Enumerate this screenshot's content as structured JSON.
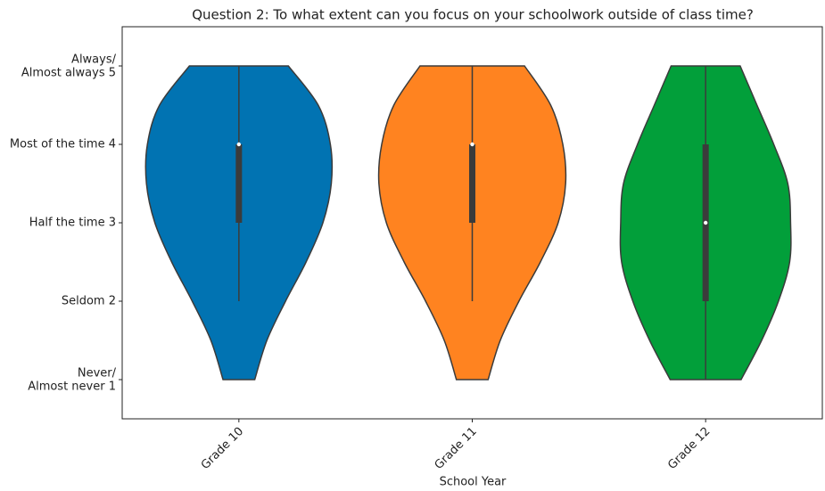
{
  "chart_data": {
    "type": "violin",
    "title": "Question 2: To what extent can you focus on your schoolwork outside of class time?",
    "xlabel": "School Year",
    "categories": [
      "Grade 10",
      "Grade 11",
      "Grade 12"
    ],
    "ylim": [
      0.5,
      5.5
    ],
    "yticks": [
      {
        "value": 1,
        "label": "Never/\nAlmost never 1"
      },
      {
        "value": 2,
        "label": "Seldom 2"
      },
      {
        "value": 3,
        "label": "Half the time 3"
      },
      {
        "value": 4,
        "label": "Most of the time 4"
      },
      {
        "value": 5,
        "label": "Always/\nAlmost always 5"
      }
    ],
    "density_y": [
      1,
      1.5,
      2,
      2.5,
      3,
      3.5,
      4,
      4.5,
      5
    ],
    "series": [
      {
        "name": "Grade 10",
        "color": "#0173b2",
        "density": [
          0.17,
          0.3,
          0.5,
          0.72,
          0.9,
          0.99,
          0.98,
          0.85,
          0.53
        ],
        "min": 2,
        "q1": 3,
        "median": 4,
        "q3": 4,
        "max": 5
      },
      {
        "name": "Grade 11",
        "color": "#ff8320",
        "density": [
          0.17,
          0.3,
          0.5,
          0.73,
          0.92,
          1.0,
          0.97,
          0.84,
          0.56
        ],
        "min": 2,
        "q1": 3,
        "median": 4,
        "q3": 4,
        "max": 5
      },
      {
        "name": "Grade 12",
        "color": "#029f3a",
        "density": [
          0.38,
          0.6,
          0.78,
          0.9,
          0.91,
          0.88,
          0.73,
          0.55,
          0.37
        ],
        "min": 1,
        "q1": 2,
        "median": 3,
        "q3": 4,
        "max": 5
      }
    ]
  }
}
